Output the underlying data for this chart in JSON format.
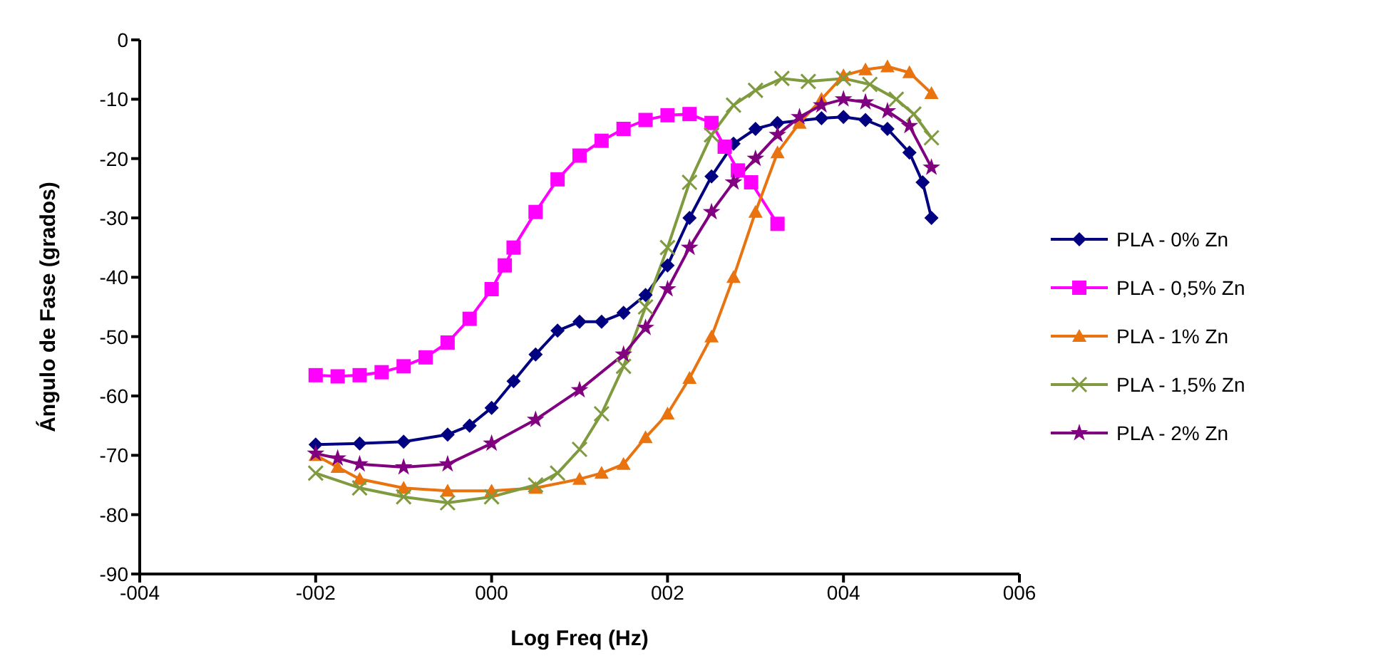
{
  "chart_data": {
    "type": "line",
    "xlabel": "Log Freq  (Hz)",
    "ylabel": "Ángulo de Fase (grados)",
    "xlim": [
      -4,
      6
    ],
    "xticks": [
      {
        "value": -4,
        "label": "-004"
      },
      {
        "value": -2,
        "label": "-002"
      },
      {
        "value": 0,
        "label": "000"
      },
      {
        "value": 2,
        "label": "002"
      },
      {
        "value": 4,
        "label": "004"
      },
      {
        "value": 6,
        "label": "006"
      }
    ],
    "ylim": [
      -90,
      0
    ],
    "yticks": [
      -90,
      -80,
      -70,
      -60,
      -50,
      -40,
      -30,
      -20,
      -10,
      0
    ],
    "grid": false,
    "legend": "right",
    "series": [
      {
        "name": "PLA - 0% Zn",
        "color": "#000080",
        "marker": "diamond",
        "x": [
          -2,
          -1.5,
          -1,
          -0.5,
          -0.25,
          0,
          0.25,
          0.5,
          0.75,
          1,
          1.25,
          1.5,
          1.75,
          2,
          2.25,
          2.5,
          2.75,
          3,
          3.25,
          3.75,
          4,
          4.25,
          4.5,
          4.75,
          4.9,
          5
        ],
        "values": [
          -68.2,
          -68,
          -67.7,
          -66.5,
          -65,
          -62,
          -57.5,
          -53,
          -49,
          -47.5,
          -47.5,
          -46,
          -43,
          -38,
          -30,
          -23,
          -17.5,
          -15,
          -14,
          -13.2,
          -13,
          -13.5,
          -15,
          -19,
          -24,
          -30
        ]
      },
      {
        "name": "PLA - 0,5% Zn",
        "color": "#ff00ff",
        "marker": "square",
        "x": [
          -2,
          -1.75,
          -1.5,
          -1.25,
          -1,
          -0.75,
          -0.5,
          -0.25,
          0,
          0.15,
          0.25,
          0.5,
          0.75,
          1,
          1.25,
          1.5,
          1.75,
          2,
          2.25,
          2.5,
          2.65,
          2.8,
          2.95,
          3.25
        ],
        "values": [
          -56.5,
          -56.7,
          -56.5,
          -56,
          -55,
          -53.5,
          -51,
          -47,
          -42,
          -38,
          -35,
          -29,
          -23.5,
          -19.5,
          -17,
          -15,
          -13.5,
          -12.7,
          -12.5,
          -14,
          -18,
          -22,
          -24,
          -31
        ]
      },
      {
        "name": "PLA - 1% Zn",
        "color": "#e8730f",
        "marker": "triangle",
        "x": [
          -2,
          -1.75,
          -1.5,
          -1,
          -0.5,
          0,
          0.5,
          1,
          1.25,
          1.5,
          1.75,
          2,
          2.25,
          2.5,
          2.75,
          3,
          3.25,
          3.5,
          3.75,
          4,
          4.25,
          4.5,
          4.75,
          5
        ],
        "values": [
          -70,
          -72,
          -74,
          -75.5,
          -76,
          -76,
          -75.5,
          -74,
          -73,
          -71.5,
          -67,
          -63,
          -57,
          -50,
          -40,
          -29,
          -19,
          -14,
          -10,
          -6,
          -5,
          -4.5,
          -5.5,
          -9
        ]
      },
      {
        "name": "PLA - 1,5% Zn",
        "color": "#7f9a3f",
        "marker": "cross",
        "x": [
          -2,
          -1.5,
          -1,
          -0.5,
          0,
          0.5,
          0.75,
          1,
          1.25,
          1.5,
          1.75,
          2,
          2.25,
          2.5,
          2.75,
          3,
          3.3,
          3.6,
          4,
          4.3,
          4.6,
          4.8,
          5
        ],
        "values": [
          -73,
          -75.5,
          -77,
          -78,
          -77,
          -75,
          -73,
          -69,
          -63,
          -55,
          -45,
          -35,
          -24,
          -16,
          -11,
          -8.5,
          -6.5,
          -7,
          -6.5,
          -7.5,
          -10,
          -12.5,
          -16.5
        ]
      },
      {
        "name": "PLA - 2% Zn",
        "color": "#800080",
        "marker": "star",
        "x": [
          -2,
          -1.75,
          -1.5,
          -1,
          -0.5,
          0,
          0.5,
          1,
          1.5,
          1.75,
          2,
          2.25,
          2.5,
          2.75,
          3,
          3.25,
          3.5,
          3.75,
          4,
          4.25,
          4.5,
          4.75,
          5
        ],
        "values": [
          -69.7,
          -70.5,
          -71.5,
          -72,
          -71.5,
          -68,
          -64,
          -59,
          -53,
          -48.5,
          -42,
          -35,
          -29,
          -24,
          -20,
          -16,
          -13,
          -11,
          -10,
          -10.5,
          -12,
          -14.5,
          -21.5
        ]
      }
    ]
  }
}
